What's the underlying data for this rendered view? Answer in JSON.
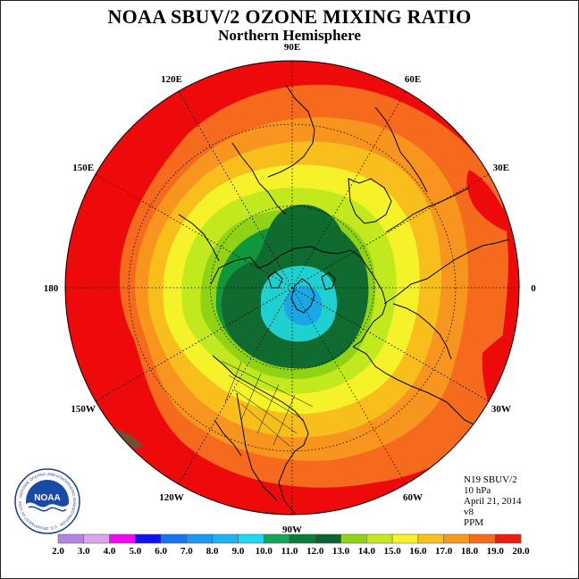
{
  "header": {
    "title": "NOAA SBUV/2 OZONE MIXING RATIO",
    "subtitle": "Northern Hemisphere"
  },
  "map": {
    "longitude_labels": [
      "90E",
      "60E",
      "30E",
      "0",
      "30W",
      "60W",
      "90W",
      "120W",
      "150W",
      "180",
      "150E",
      "120E"
    ],
    "colors": {
      "outer": "#ee0a0a",
      "band_18_19": "#f56a1c",
      "band_17_18": "#f7951f",
      "band_16_17": "#f8bf1c",
      "band_15_16": "#f6f22a",
      "band_14_15": "#c2e81e",
      "band_13_14": "#8fd314",
      "band_12_13": "#10963b",
      "band_11_12": "#0f6b30",
      "band_10_11": "#1ed0cf",
      "band_9_10": "#1aa7e6",
      "coast": "#000000",
      "grid": "#000000"
    }
  },
  "info": {
    "satellite": "N19 SBUV/2",
    "pressure": "10 hPa",
    "date": "April 21, 2014",
    "version": "v8",
    "units": "PPM"
  },
  "logo": {
    "text": "NOAA",
    "ring_text": "NATIONAL OCEANIC AND ATMOSPHERIC ADMINISTRATION · U.S. DEPARTMENT OF COMMERCE"
  },
  "colorbar": {
    "labels": [
      "2.0",
      "3.0",
      "4.0",
      "5.0",
      "6.0",
      "7.0",
      "8.0",
      "9.0",
      "10.0",
      "11.0",
      "12.0",
      "13.0",
      "14.0",
      "15.0",
      "16.0",
      "17.0",
      "18.0",
      "19.0",
      "20.0"
    ],
    "colors": [
      "#b483e0",
      "#d9a6ee",
      "#f10af0",
      "#1212ee",
      "#1677ec",
      "#1f97ec",
      "#1fb2ee",
      "#20d6f0",
      "#14a55a",
      "#0b7d3a",
      "#0d6331",
      "#8fd316",
      "#c5e81e",
      "#f6f22a",
      "#f7c01c",
      "#f69a1e",
      "#f46d1d",
      "#ec1c10"
    ]
  }
}
